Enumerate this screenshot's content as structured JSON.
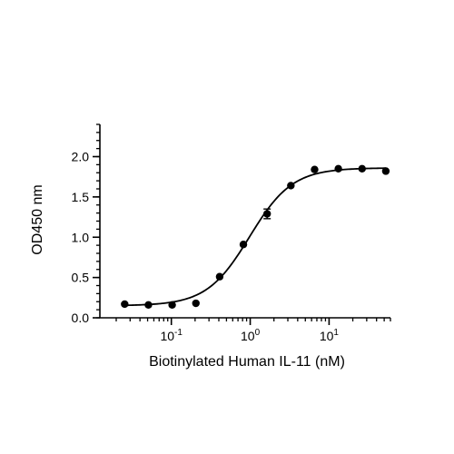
{
  "chart_data": {
    "type": "scatter",
    "title": "",
    "xlabel": "Biotinylated Human IL-11 (nM)",
    "ylabel": "OD450 nm",
    "x_scale": "log10",
    "xlim": [
      0.02,
      60
    ],
    "ylim": [
      0,
      2.4
    ],
    "x_ticks": [
      {
        "value": 0.1,
        "base": "10",
        "exp": "-1"
      },
      {
        "value": 1,
        "base": "10",
        "exp": "0"
      },
      {
        "value": 10,
        "base": "10",
        "exp": "1"
      }
    ],
    "y_ticks": [
      {
        "value": 0,
        "label": "0.0"
      },
      {
        "value": 0.5,
        "label": "0.5"
      },
      {
        "value": 1.0,
        "label": "1.0"
      },
      {
        "value": 1.5,
        "label": "1.5"
      },
      {
        "value": 2.0,
        "label": "2.0"
      }
    ],
    "grid": false,
    "legend": "none",
    "points": [
      {
        "x": 0.0256,
        "y": 0.17
      },
      {
        "x": 0.0512,
        "y": 0.16
      },
      {
        "x": 0.1024,
        "y": 0.16
      },
      {
        "x": 0.2048,
        "y": 0.18
      },
      {
        "x": 0.4096,
        "y": 0.51
      },
      {
        "x": 0.8192,
        "y": 0.91
      },
      {
        "x": 1.6384,
        "y": 1.29,
        "error": 0.06
      },
      {
        "x": 3.2768,
        "y": 1.64
      },
      {
        "x": 6.5536,
        "y": 1.84
      },
      {
        "x": 13.1072,
        "y": 1.85
      },
      {
        "x": 26.2144,
        "y": 1.85
      },
      {
        "x": 52.4288,
        "y": 1.82
      }
    ],
    "fit": {
      "type": "4PL",
      "bottom": 0.15,
      "top": 1.86,
      "ec50": 0.98,
      "hill": 1.6
    },
    "colors": {
      "marks": "#000000",
      "axes": "#000000"
    }
  }
}
